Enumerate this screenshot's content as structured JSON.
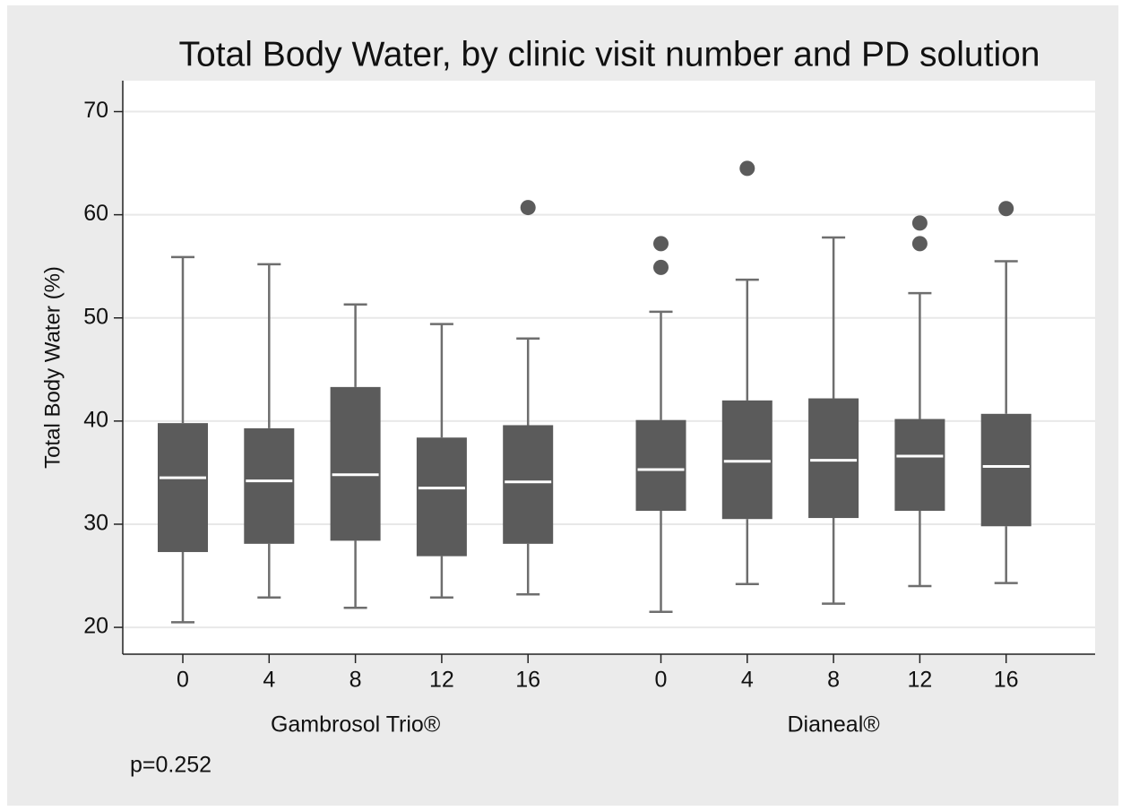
{
  "chart_data": {
    "type": "box",
    "title": "Total Body Water, by clinic visit number and PD solution",
    "y_label": "Total Body Water (%)",
    "annotation": "p=0.252",
    "ylim": [
      17.4,
      73
    ],
    "yticks": [
      20,
      30,
      40,
      50,
      60,
      70
    ],
    "grid": true,
    "color": "#5b5b5b",
    "groups": [
      {
        "name": "Gambrosol Trio®",
        "categories": [
          "0",
          "4",
          "8",
          "12",
          "16"
        ],
        "boxes": [
          {
            "min": 20.5,
            "q1": 27.3,
            "median": 34.5,
            "q3": 39.8,
            "max": 55.9,
            "outliers": []
          },
          {
            "min": 22.9,
            "q1": 28.1,
            "median": 34.2,
            "q3": 39.3,
            "max": 55.2,
            "outliers": []
          },
          {
            "min": 21.9,
            "q1": 28.4,
            "median": 34.8,
            "q3": 43.3,
            "max": 51.3,
            "outliers": []
          },
          {
            "min": 22.9,
            "q1": 26.9,
            "median": 33.5,
            "q3": 38.4,
            "max": 49.4,
            "outliers": []
          },
          {
            "min": 23.2,
            "q1": 28.1,
            "median": 34.1,
            "q3": 39.6,
            "max": 48.0,
            "outliers": [
              60.7
            ]
          }
        ]
      },
      {
        "name": "Dianeal®",
        "categories": [
          "0",
          "4",
          "8",
          "12",
          "16"
        ],
        "boxes": [
          {
            "min": 21.5,
            "q1": 31.3,
            "median": 35.3,
            "q3": 40.1,
            "max": 50.6,
            "outliers": [
              57.2,
              54.9
            ]
          },
          {
            "min": 24.2,
            "q1": 30.5,
            "median": 36.1,
            "q3": 42.0,
            "max": 53.7,
            "outliers": [
              64.5
            ]
          },
          {
            "min": 22.3,
            "q1": 30.6,
            "median": 36.2,
            "q3": 42.2,
            "max": 57.8,
            "outliers": []
          },
          {
            "min": 24.0,
            "q1": 31.3,
            "median": 36.6,
            "q3": 40.2,
            "max": 52.4,
            "outliers": [
              59.2,
              57.2
            ]
          },
          {
            "min": 24.3,
            "q1": 29.8,
            "median": 35.6,
            "q3": 40.7,
            "max": 55.5,
            "outliers": [
              60.6
            ]
          }
        ]
      }
    ]
  }
}
